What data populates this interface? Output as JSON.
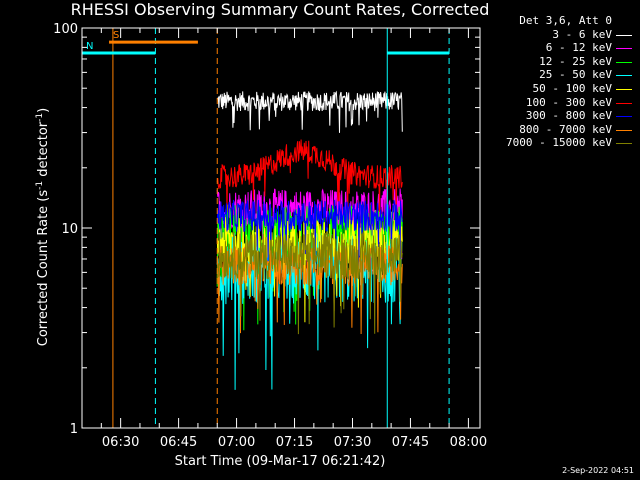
{
  "title": "RHESSI Observing Summary Count Rates, Corrected",
  "ylabel_main": "Corrected Count Rate (s",
  "ylabel_exp1": "-1",
  "ylabel_mid": " detector",
  "ylabel_exp2": "-1",
  "ylabel_end": ")",
  "xlabel": "Start Time (09-Mar-17 06:21:42)",
  "footer": "2-Sep-2022 04:51",
  "legend_header": "Det 3,6, Att 0",
  "chart_data": {
    "type": "line",
    "title": "RHESSI Observing Summary Count Rates, Corrected",
    "xlabel": "Start Time (09-Mar-17 06:21:42)",
    "ylabel": "Corrected Count Rate (s-1 detector-1)",
    "xlim": [
      "06:20",
      "08:03"
    ],
    "ylim": [
      1,
      100
    ],
    "yscale": "log",
    "x_ticks": [
      "06:30",
      "06:45",
      "07:00",
      "07:15",
      "07:30",
      "07:45",
      "08:00"
    ],
    "y_ticks": [
      "1",
      "10",
      "100"
    ],
    "legend_position": "top-right, outside plot",
    "data_span": [
      "06:55",
      "07:43"
    ],
    "series": [
      {
        "name": "3 - 6 keV",
        "color": "#ffffff",
        "level": 43,
        "spread": 0.05,
        "trend": "flat"
      },
      {
        "name": "6 - 12 keV",
        "color": "#ff00ff",
        "level": 12.5,
        "spread": 0.1,
        "trend": "flat"
      },
      {
        "name": "12 - 25 keV",
        "color": "#00ff00",
        "level": 9.5,
        "spread": 0.14,
        "trend": "flat"
      },
      {
        "name": "25 - 50 keV",
        "color": "#00ffff",
        "level": 6.3,
        "spread": 0.18,
        "trend": "flat"
      },
      {
        "name": "50 - 100 keV",
        "color": "#ffff00",
        "level": 8.6,
        "spread": 0.12,
        "trend": "flat"
      },
      {
        "name": "100 - 300 keV",
        "color": "#ff0000",
        "level": 18,
        "spread": 0.06,
        "trend": "bump 07:15"
      },
      {
        "name": "300 - 800 keV",
        "color": "#0000ff",
        "level": 11.5,
        "spread": 0.08,
        "trend": "flat"
      },
      {
        "name": "800 - 7000 keV",
        "color": "#ff8000",
        "level": 6.5,
        "spread": 0.1,
        "trend": "flat"
      },
      {
        "name": "7000 - 15000 keV",
        "color": "#808000",
        "level": 7.3,
        "spread": 0.12,
        "trend": "flat"
      }
    ],
    "flags": [
      {
        "label": "S",
        "color": "#ff8000",
        "start": "06:27",
        "end": "06:50",
        "level": 85
      },
      {
        "label": "N",
        "color": "#00ffff",
        "start": "06:20",
        "end": "06:39",
        "level": 75
      },
      {
        "label": "",
        "color": "#00ffff",
        "start": "07:39",
        "end": "07:55",
        "level": 75
      }
    ],
    "markers": [
      {
        "time": "06:20",
        "color": "#00ffff",
        "style": "solid"
      },
      {
        "time": "06:28",
        "color": "#ff8000",
        "style": "solid"
      },
      {
        "time": "06:39",
        "color": "#00ffff",
        "style": "dashed"
      },
      {
        "time": "06:55",
        "color": "#ff8000",
        "style": "dashed"
      },
      {
        "time": "07:39",
        "color": "#00ffff",
        "style": "solid"
      },
      {
        "time": "07:55",
        "color": "#00ffff",
        "style": "dashed"
      }
    ]
  }
}
